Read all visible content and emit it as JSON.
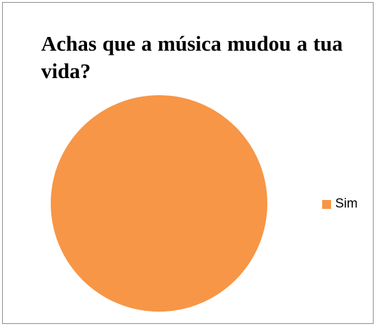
{
  "chart_data": {
    "type": "pie",
    "title": "Achas que a música mudou a tua vida?",
    "categories": [
      "Sim"
    ],
    "values": [
      100
    ],
    "colors": [
      "#f79646"
    ],
    "legend_position": "right"
  }
}
